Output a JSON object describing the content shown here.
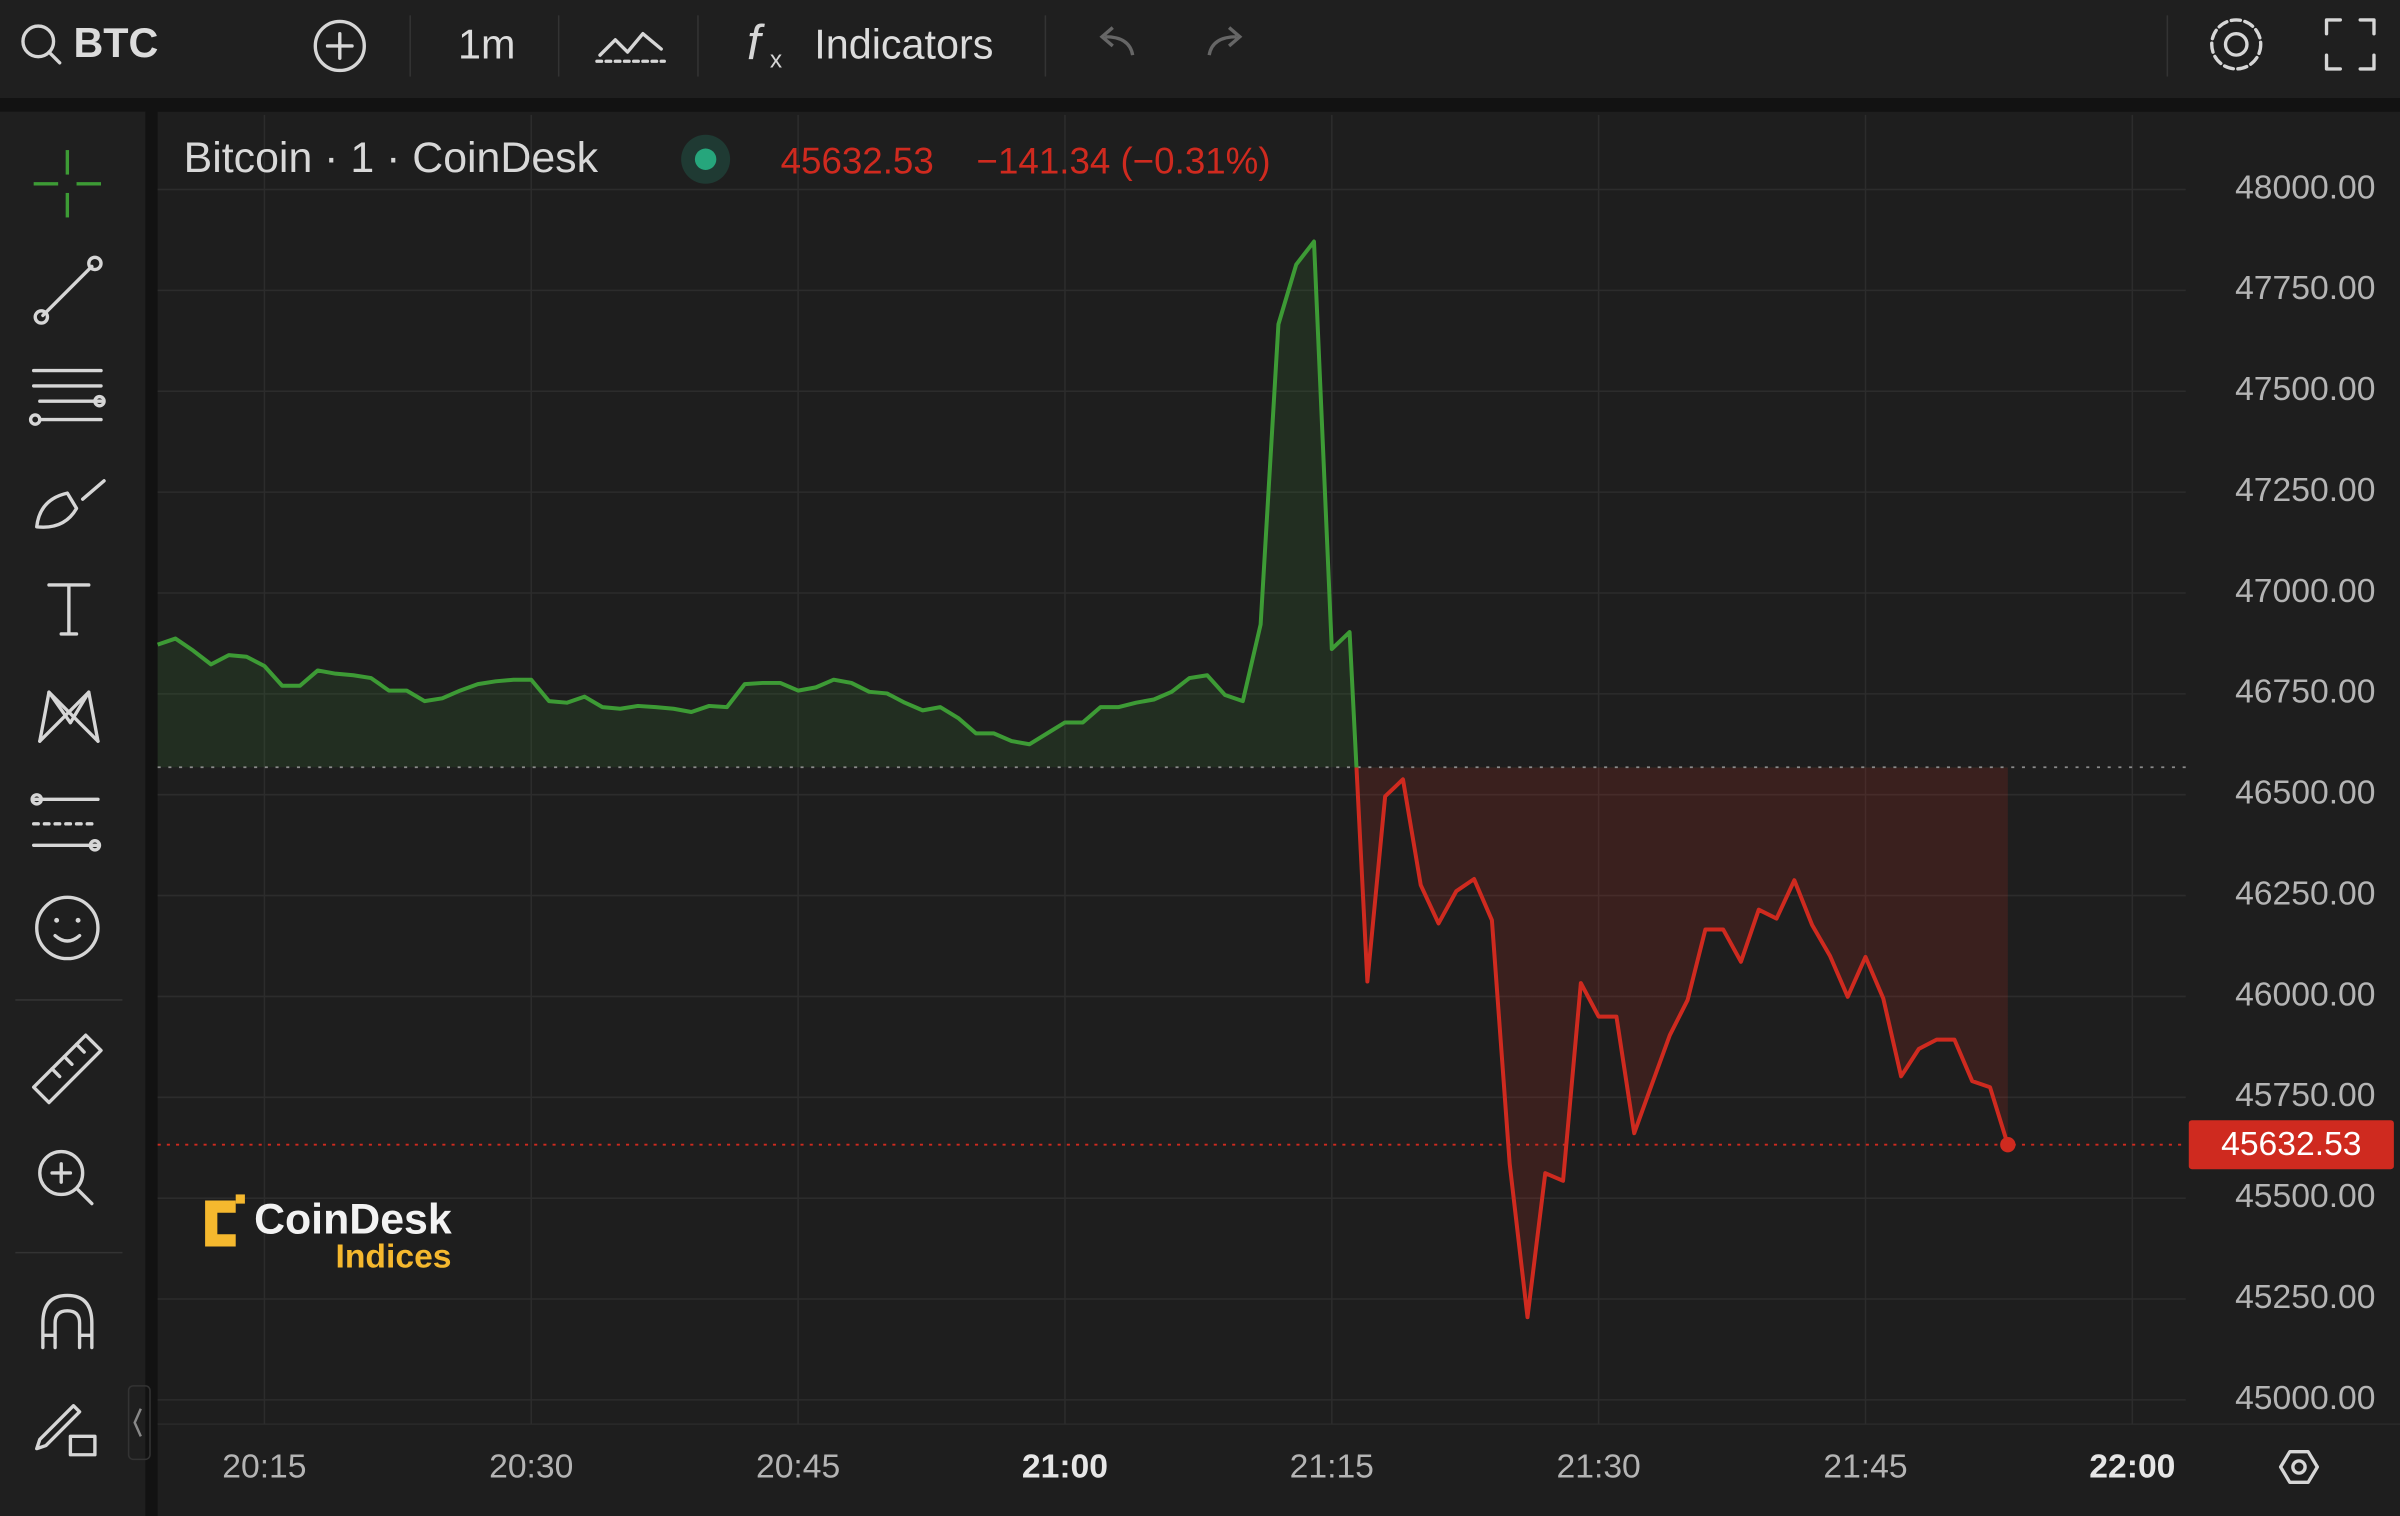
{
  "toolbar": {
    "symbol": "BTC",
    "interval": "1m",
    "indicators": "Indicators"
  },
  "watermark": {
    "brand": "CoinDesk",
    "sub": "Indices"
  },
  "chart_data": {
    "type": "baseline-area",
    "change": "−141.34 (−0.31%)",
    "series": [
      {
        "name": "Bitcoin · 1 · CoinDesk",
        "x": [
          "20:09",
          "20:10",
          "20:11",
          "20:12",
          "20:13",
          "20:14",
          "20:15",
          "20:16",
          "20:17",
          "20:18",
          "20:19",
          "20:20",
          "20:21",
          "20:22",
          "20:23",
          "20:24",
          "20:25",
          "20:26",
          "20:27",
          "20:28",
          "20:29",
          "20:30",
          "20:31",
          "20:32",
          "20:33",
          "20:34",
          "20:35",
          "20:36",
          "20:37",
          "20:38",
          "20:39",
          "20:40",
          "20:41",
          "20:42",
          "20:43",
          "20:44",
          "20:45",
          "20:46",
          "20:47",
          "20:48",
          "20:49",
          "20:50",
          "20:51",
          "20:52",
          "20:53",
          "20:54",
          "20:55",
          "20:56",
          "20:57",
          "20:58",
          "20:59",
          "21:00",
          "21:01",
          "21:02",
          "21:03",
          "21:04",
          "21:05",
          "21:06",
          "21:07",
          "21:08",
          "21:09",
          "21:10",
          "21:11",
          "21:12",
          "21:13",
          "21:14",
          "21:15",
          "21:16",
          "21:17",
          "21:18",
          "21:19",
          "21:20",
          "21:21",
          "21:22",
          "21:23",
          "21:24",
          "21:25",
          "21:26",
          "21:27",
          "21:28",
          "21:29",
          "21:30",
          "21:31",
          "21:32",
          "21:33",
          "21:34",
          "21:35",
          "21:36",
          "21:37",
          "21:38",
          "21:39",
          "21:40",
          "21:41",
          "21:42",
          "21:43",
          "21:44",
          "21:45",
          "21:46",
          "21:47",
          "21:48",
          "21:49",
          "21:50",
          "21:51",
          "21:52",
          "21:53"
        ],
        "values": [
          46872,
          46887,
          46857,
          46823,
          46846,
          46842,
          46819,
          46770,
          46770,
          46808,
          46800,
          46796,
          46789,
          46758,
          46758,
          46732,
          46739,
          46758,
          46774,
          46781,
          46785,
          46785,
          46732,
          46728,
          46743,
          46717,
          46713,
          46720,
          46717,
          46713,
          46705,
          46720,
          46717,
          46774,
          46777,
          46777,
          46758,
          46766,
          46785,
          46777,
          46755,
          46751,
          46728,
          46709,
          46717,
          46690,
          46652,
          46652,
          46633,
          46625,
          46652,
          46679,
          46679,
          46717,
          46717,
          46728,
          46736,
          46755,
          46789,
          46796,
          46747,
          46732,
          46922,
          47666,
          47814,
          47871,
          46861,
          46903,
          46037,
          46496,
          46538,
          46276,
          46181,
          46261,
          46291,
          46189,
          45585,
          45205,
          45562,
          45543,
          46033,
          45950,
          45950,
          45661,
          45783,
          45904,
          45991,
          46166,
          46166,
          46086,
          46215,
          46193,
          46288,
          46177,
          46101,
          45999,
          46098,
          45995,
          45802,
          45870,
          45893,
          45893,
          45790,
          45775,
          45632.53
        ]
      }
    ],
    "baseline": 46568,
    "up_color": "#3d9b35",
    "down_color": "#cf2a1f",
    "xlim": [
      "20:09",
      "22:03"
    ],
    "xticks": [
      "20:15",
      "20:30",
      "20:45",
      "21:00",
      "21:15",
      "21:30",
      "21:45",
      "22:00"
    ],
    "ylim": [
      44940,
      48185
    ],
    "yticks": [
      {
        "value": 45000,
        "label": "45000.00"
      },
      {
        "value": 45250,
        "label": "45250.00"
      },
      {
        "value": 45500,
        "label": "45500.00"
      },
      {
        "value": 45750,
        "label": "45750.00"
      },
      {
        "value": 46000,
        "label": "46000.00"
      },
      {
        "value": 46250,
        "label": "46250.00"
      },
      {
        "value": 46500,
        "label": "46500.00"
      },
      {
        "value": 46750,
        "label": "46750.00"
      },
      {
        "value": 47000,
        "label": "47000.00"
      },
      {
        "value": 47250,
        "label": "47250.00"
      },
      {
        "value": 47500,
        "label": "47500.00"
      },
      {
        "value": 47750,
        "label": "47750.00"
      },
      {
        "value": 48000,
        "label": "48000.00"
      }
    ],
    "grid": true
  }
}
